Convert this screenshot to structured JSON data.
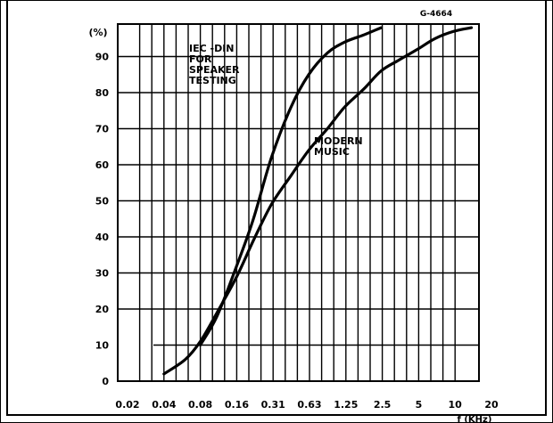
{
  "chart_data": {
    "type": "line",
    "figure_code": "G-4664",
    "y_unit": "(%)",
    "xlabel": "f (KHz)",
    "x_ticks": [
      "0.02",
      "0.04",
      "0.08",
      "0.16",
      "0.31",
      "0.63",
      "1.25",
      "2.5",
      "5",
      "10",
      "20"
    ],
    "y_ticks": [
      "0",
      "10",
      "20",
      "30",
      "40",
      "50",
      "60",
      "70",
      "80",
      "90"
    ],
    "ylim": [
      0,
      100
    ],
    "x_scale": "log2 (octave steps)",
    "grid": true,
    "annotations": [
      "IEC-DIN FOR SPEAKER TESTING",
      "MODERN MUSIC"
    ],
    "series": [
      {
        "name": "IEC-DIN FOR SPEAKER TESTING",
        "x": [
          0.08,
          0.11,
          0.16,
          0.22,
          0.31,
          0.45,
          0.63,
          0.9,
          1.25,
          1.8,
          2.5
        ],
        "values": [
          10,
          18,
          32,
          45,
          62,
          76,
          85,
          91,
          94,
          96,
          98
        ]
      },
      {
        "name": "MODERN MUSIC",
        "x": [
          0.04,
          0.06,
          0.08,
          0.11,
          0.16,
          0.22,
          0.31,
          0.45,
          0.63,
          0.9,
          1.25,
          1.8,
          2.5,
          3.5,
          5,
          7,
          10,
          14
        ],
        "values": [
          2,
          6,
          11,
          19,
          29,
          39,
          49,
          57,
          64,
          70,
          76,
          81,
          86,
          89,
          92,
          95,
          97,
          98
        ]
      }
    ]
  }
}
